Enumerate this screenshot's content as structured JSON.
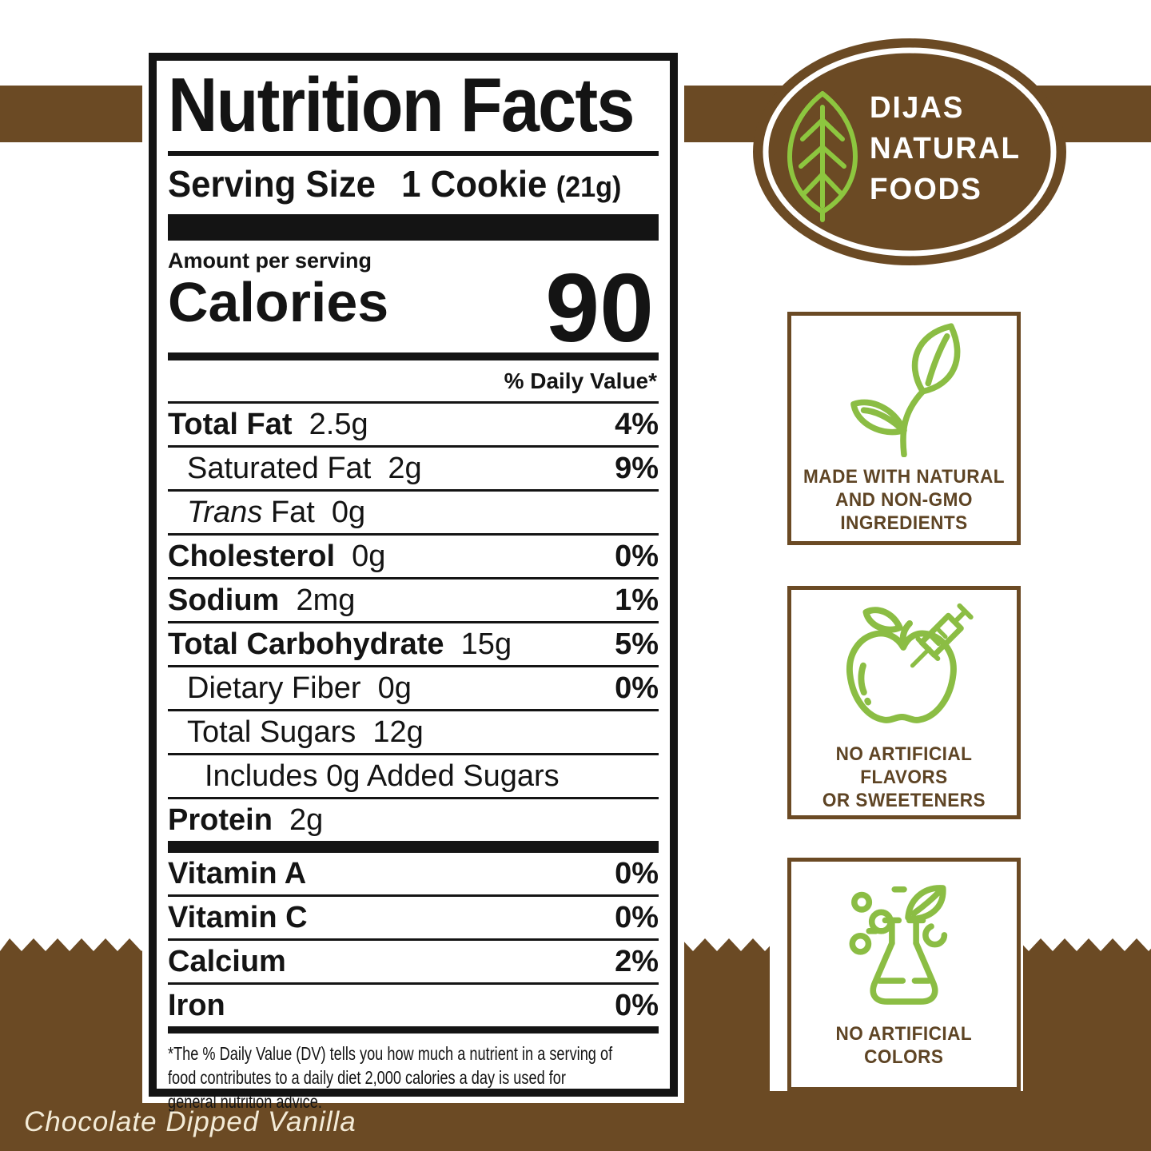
{
  "colors": {
    "brown": "#6b4a24",
    "logo_green": "#8dc63f",
    "badge_green": "#8bbd44",
    "badge_text_brown": "#5e4424",
    "label_black": "#141414",
    "flavor_cream": "#f3ebd7"
  },
  "logo": {
    "icon": "leaf-icon",
    "name": "DIJAS\nNATURAL\nFOODS"
  },
  "nutrition_label": {
    "title": "Nutrition Facts",
    "serving": {
      "label": "Serving Size",
      "value": "1 Cookie",
      "weight": "(21g)"
    },
    "amount_per_serving": "Amount per serving",
    "calories": {
      "label": "Calories",
      "value": "90"
    },
    "daily_value_header": "% Daily Value*",
    "rows": [
      {
        "indent": 0,
        "bold": true,
        "name": "Total Fat",
        "amount": "2.5g",
        "dv": "4%"
      },
      {
        "indent": 1,
        "bold": false,
        "name": "Saturated Fat",
        "amount": "2g",
        "dv": "9%"
      },
      {
        "indent": 1,
        "bold": false,
        "name_italic": "Trans",
        "name": "Fat",
        "amount": "0g",
        "dv": ""
      },
      {
        "indent": 0,
        "bold": true,
        "name": "Cholesterol",
        "amount": "0g",
        "dv": "0%"
      },
      {
        "indent": 0,
        "bold": true,
        "name": "Sodium",
        "amount": "2mg",
        "dv": "1%"
      },
      {
        "indent": 0,
        "bold": true,
        "name": "Total Carbohydrate",
        "amount": "15g",
        "dv": "5%"
      },
      {
        "indent": 1,
        "bold": false,
        "name": "Dietary Fiber",
        "amount": "0g",
        "dv": "0%"
      },
      {
        "indent": 1,
        "bold": false,
        "name": "Total Sugars",
        "amount": "12g",
        "dv": ""
      },
      {
        "indent": 2,
        "bold": false,
        "name": "Includes 0g Added Sugars",
        "amount": "",
        "dv": ""
      },
      {
        "indent": 0,
        "bold": true,
        "name": "Protein",
        "amount": "2g",
        "dv": ""
      }
    ],
    "vitamins": [
      {
        "name": "Vitamin A",
        "dv": "0%"
      },
      {
        "name": "Vitamin C",
        "dv": "0%"
      },
      {
        "name": "Calcium",
        "dv": "2%"
      },
      {
        "name": "Iron",
        "dv": "0%"
      }
    ],
    "footnote": "*The % Daily Value (DV) tells you how much a nutrient in a serving of\nfood contributes to a daily diet 2,000 calories a day is used for\ngeneral nutrition advice."
  },
  "badges": [
    {
      "icon": "sprout-icon",
      "text": "MADE WITH NATURAL\nAND NON-GMO\nINGREDIENTS"
    },
    {
      "icon": "apple-syringe-icon",
      "text": "NO ARTIFICIAL FLAVORS\nOR SWEETENERS"
    },
    {
      "icon": "flask-leaf-icon",
      "text": "NO ARTIFICIAL\nCOLORS"
    }
  ],
  "flavor": {
    "label": "Chocolate Dipped Vanilla"
  }
}
